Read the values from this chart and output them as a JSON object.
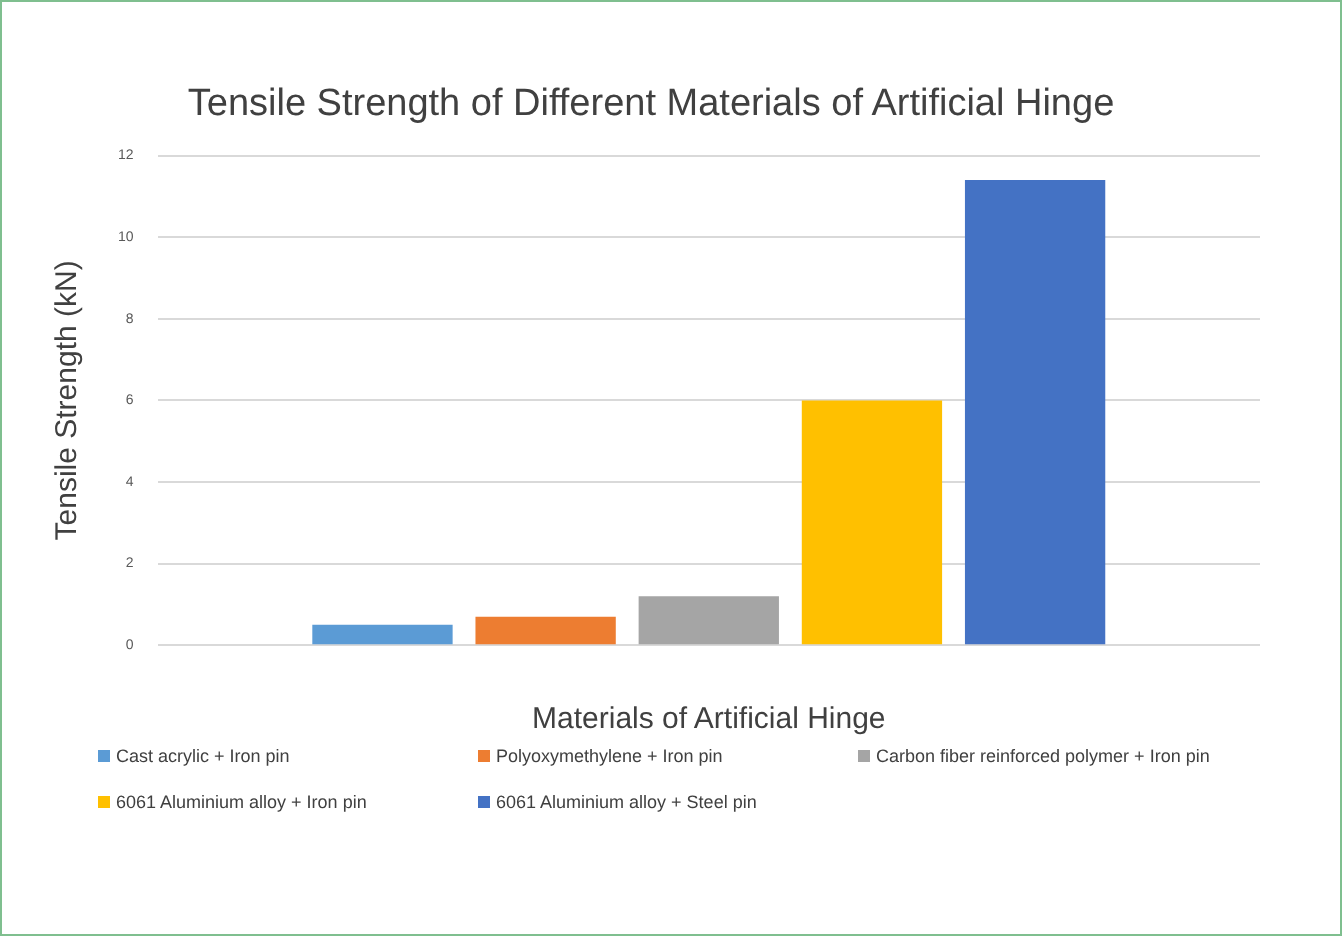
{
  "chart_data": {
    "type": "bar",
    "title": "Tensile Strength of Different Materials of Artificial Hinge",
    "xlabel": "Materials of Artificial Hinge",
    "ylabel": "Tensile Strength (kN)",
    "categories": [
      null
    ],
    "series": [
      {
        "name": "Cast acrylic + Iron pin",
        "color": "#5b9bd5",
        "values": [
          0.5
        ]
      },
      {
        "name": "Polyoxymethylene + Iron pin",
        "color": "#ed7d31",
        "values": [
          0.7
        ]
      },
      {
        "name": "Carbon fiber reinforced polymer + Iron pin",
        "color": "#a5a5a5",
        "values": [
          1.2
        ]
      },
      {
        "name": "6061 Aluminium alloy + Iron pin",
        "color": "#ffc000",
        "values": [
          6.0
        ]
      },
      {
        "name": "6061 Aluminium alloy + Steel pin",
        "color": "#4472c4",
        "values": [
          11.4
        ]
      }
    ],
    "ylim": [
      0,
      12
    ],
    "yticks": [
      0,
      2,
      4,
      6,
      8,
      10,
      12
    ],
    "grid": "y",
    "legend": "bottom"
  }
}
